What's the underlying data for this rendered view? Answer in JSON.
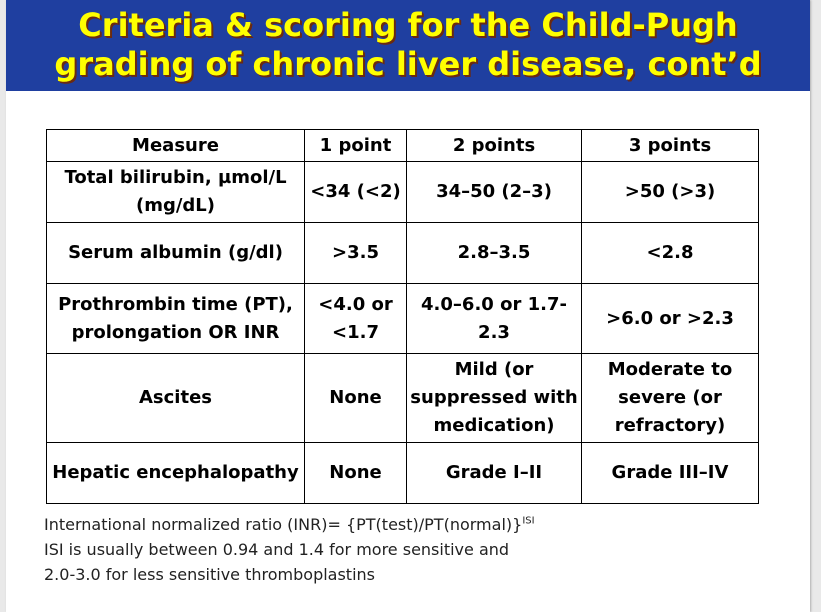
{
  "title": {
    "line1": "Criteria & scoring for the Child-Pugh",
    "line2": "grading of chronic liver disease, cont’d"
  },
  "table": {
    "headers": [
      "Measure",
      "1 point",
      "2 points",
      "3 points"
    ],
    "rows": [
      [
        "Total bilirubin, µmol/L (mg/dL)",
        "<34 (<2)",
        "34–50 (2–3)",
        ">50 (>3)"
      ],
      [
        "Serum albumin (g/dl)",
        ">3.5",
        "2.8–3.5",
        "<2.8"
      ],
      [
        "Prothrombin time (PT), prolongation OR INR",
        "<4.0 or <1.7",
        "4.0–6.0 or 1.7-2.3",
        ">6.0 or >2.3"
      ],
      [
        "Ascites",
        "None",
        "Mild (or suppressed with medication)",
        "Moderate to severe (or refractory)"
      ],
      [
        "Hepatic encephalopathy",
        "None",
        "Grade I–II",
        "Grade III–IV"
      ]
    ]
  },
  "footnote": {
    "line1": "International normalized ratio (INR)= {PT(test)/PT(normal)}",
    "line1_sup": "ISI",
    "line2": "ISI is usually between 0.94 and 1.4 for more sensitive and",
    "line3": "2.0-3.0 for less sensitive thromboplastins"
  },
  "colors": {
    "banner": "#1f3fa0",
    "title_text": "#ffff00",
    "title_shadow": "#6b2a10"
  }
}
